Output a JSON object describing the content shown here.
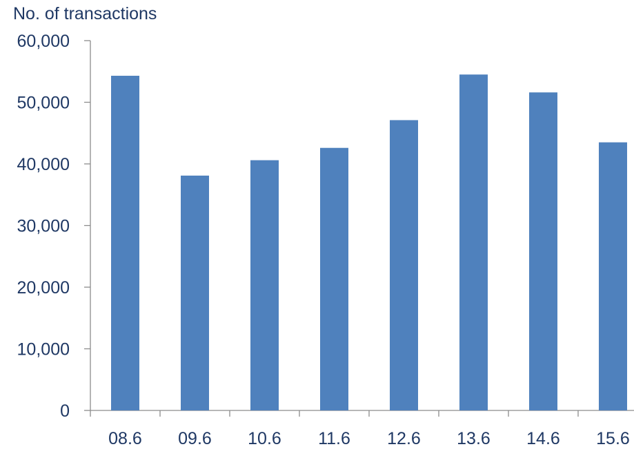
{
  "chart_data": {
    "type": "bar",
    "title": "",
    "xlabel": "",
    "ylabel": "No. of transactions",
    "categories": [
      "08.6",
      "09.6",
      "10.6",
      "11.6",
      "12.6",
      "13.6",
      "14.6",
      "15.6"
    ],
    "values": [
      54300,
      38100,
      40600,
      42600,
      47100,
      54500,
      51600,
      43500
    ],
    "ylim": [
      0,
      60000
    ],
    "yticks": [
      0,
      10000,
      20000,
      30000,
      40000,
      50000,
      60000
    ],
    "ytick_labels": [
      "0",
      "10,000",
      "20,000",
      "30,000",
      "40,000",
      "50,000",
      "60,000"
    ],
    "grid": false,
    "legend": "none",
    "colors": {
      "bar": "#4f81bd",
      "axis": "#8c8c8c",
      "text": "#1f3864"
    }
  }
}
